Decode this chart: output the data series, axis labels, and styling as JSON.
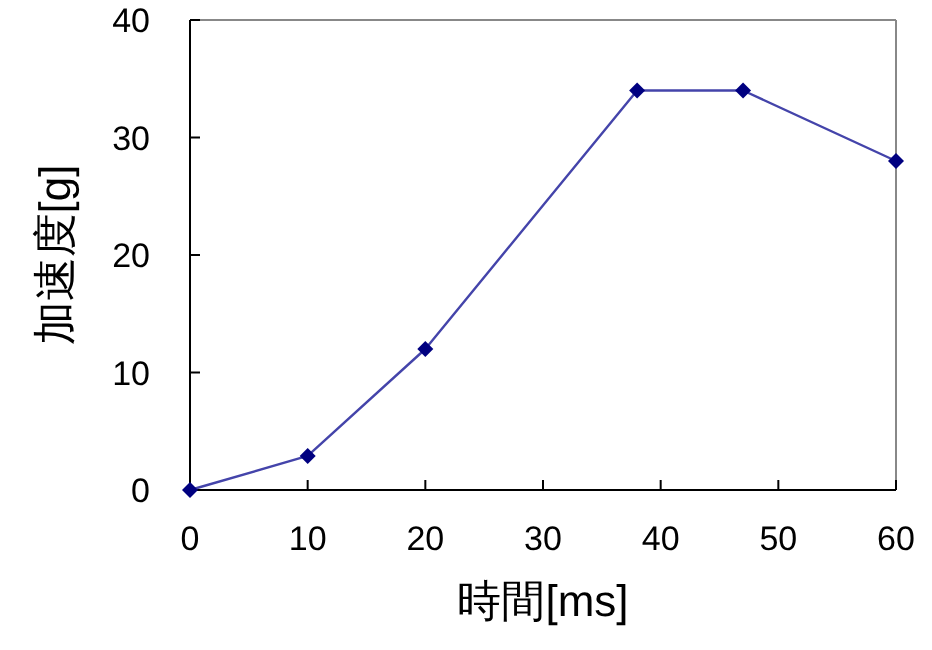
{
  "chart_data": {
    "type": "line",
    "xlabel": "時間[ms]",
    "ylabel": "加速度[g]",
    "x": [
      0,
      10,
      20,
      38,
      47,
      60
    ],
    "series": [
      {
        "color": "#000080",
        "values": [
          0,
          2.9,
          12,
          34,
          34,
          28
        ]
      }
    ],
    "xlim": [
      0,
      60
    ],
    "xticks": [
      0,
      10,
      20,
      30,
      40,
      50,
      60
    ],
    "ylim": [
      0,
      40
    ],
    "yticks": [
      0,
      10,
      20,
      30,
      40
    ],
    "marker": "diamond",
    "line_style": "solid",
    "grid": false
  }
}
